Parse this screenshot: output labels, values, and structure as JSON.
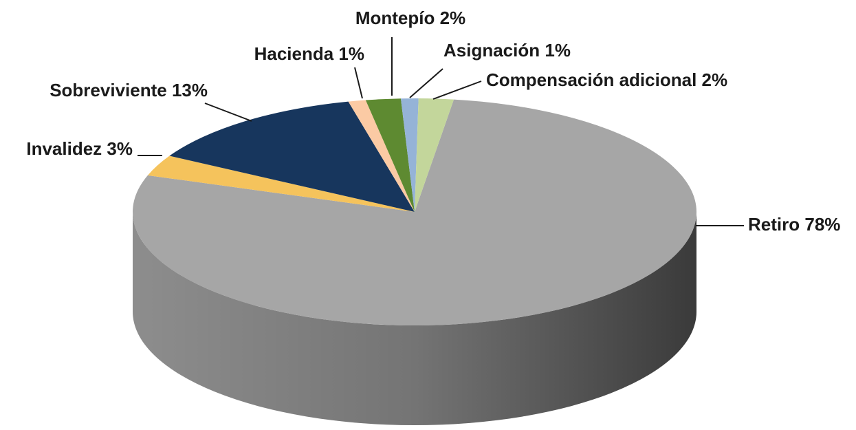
{
  "chart_data": {
    "type": "pie",
    "categories": [
      "Retiro",
      "Invalidez",
      "Sobreviviente",
      "Hacienda",
      "Montepío",
      "Asignación",
      "Compensación adicional"
    ],
    "values": [
      78,
      3,
      13,
      1,
      2,
      1,
      2
    ],
    "value_labels": [
      "78%",
      "3%",
      "13%",
      "1%",
      "2%",
      "1%",
      "2%"
    ],
    "colors": [
      "#a6a6a6",
      "#f5c35c",
      "#17365d",
      "#fbcaa4",
      "#5e8a31",
      "#95b3d7",
      "#c3d69b"
    ]
  }
}
